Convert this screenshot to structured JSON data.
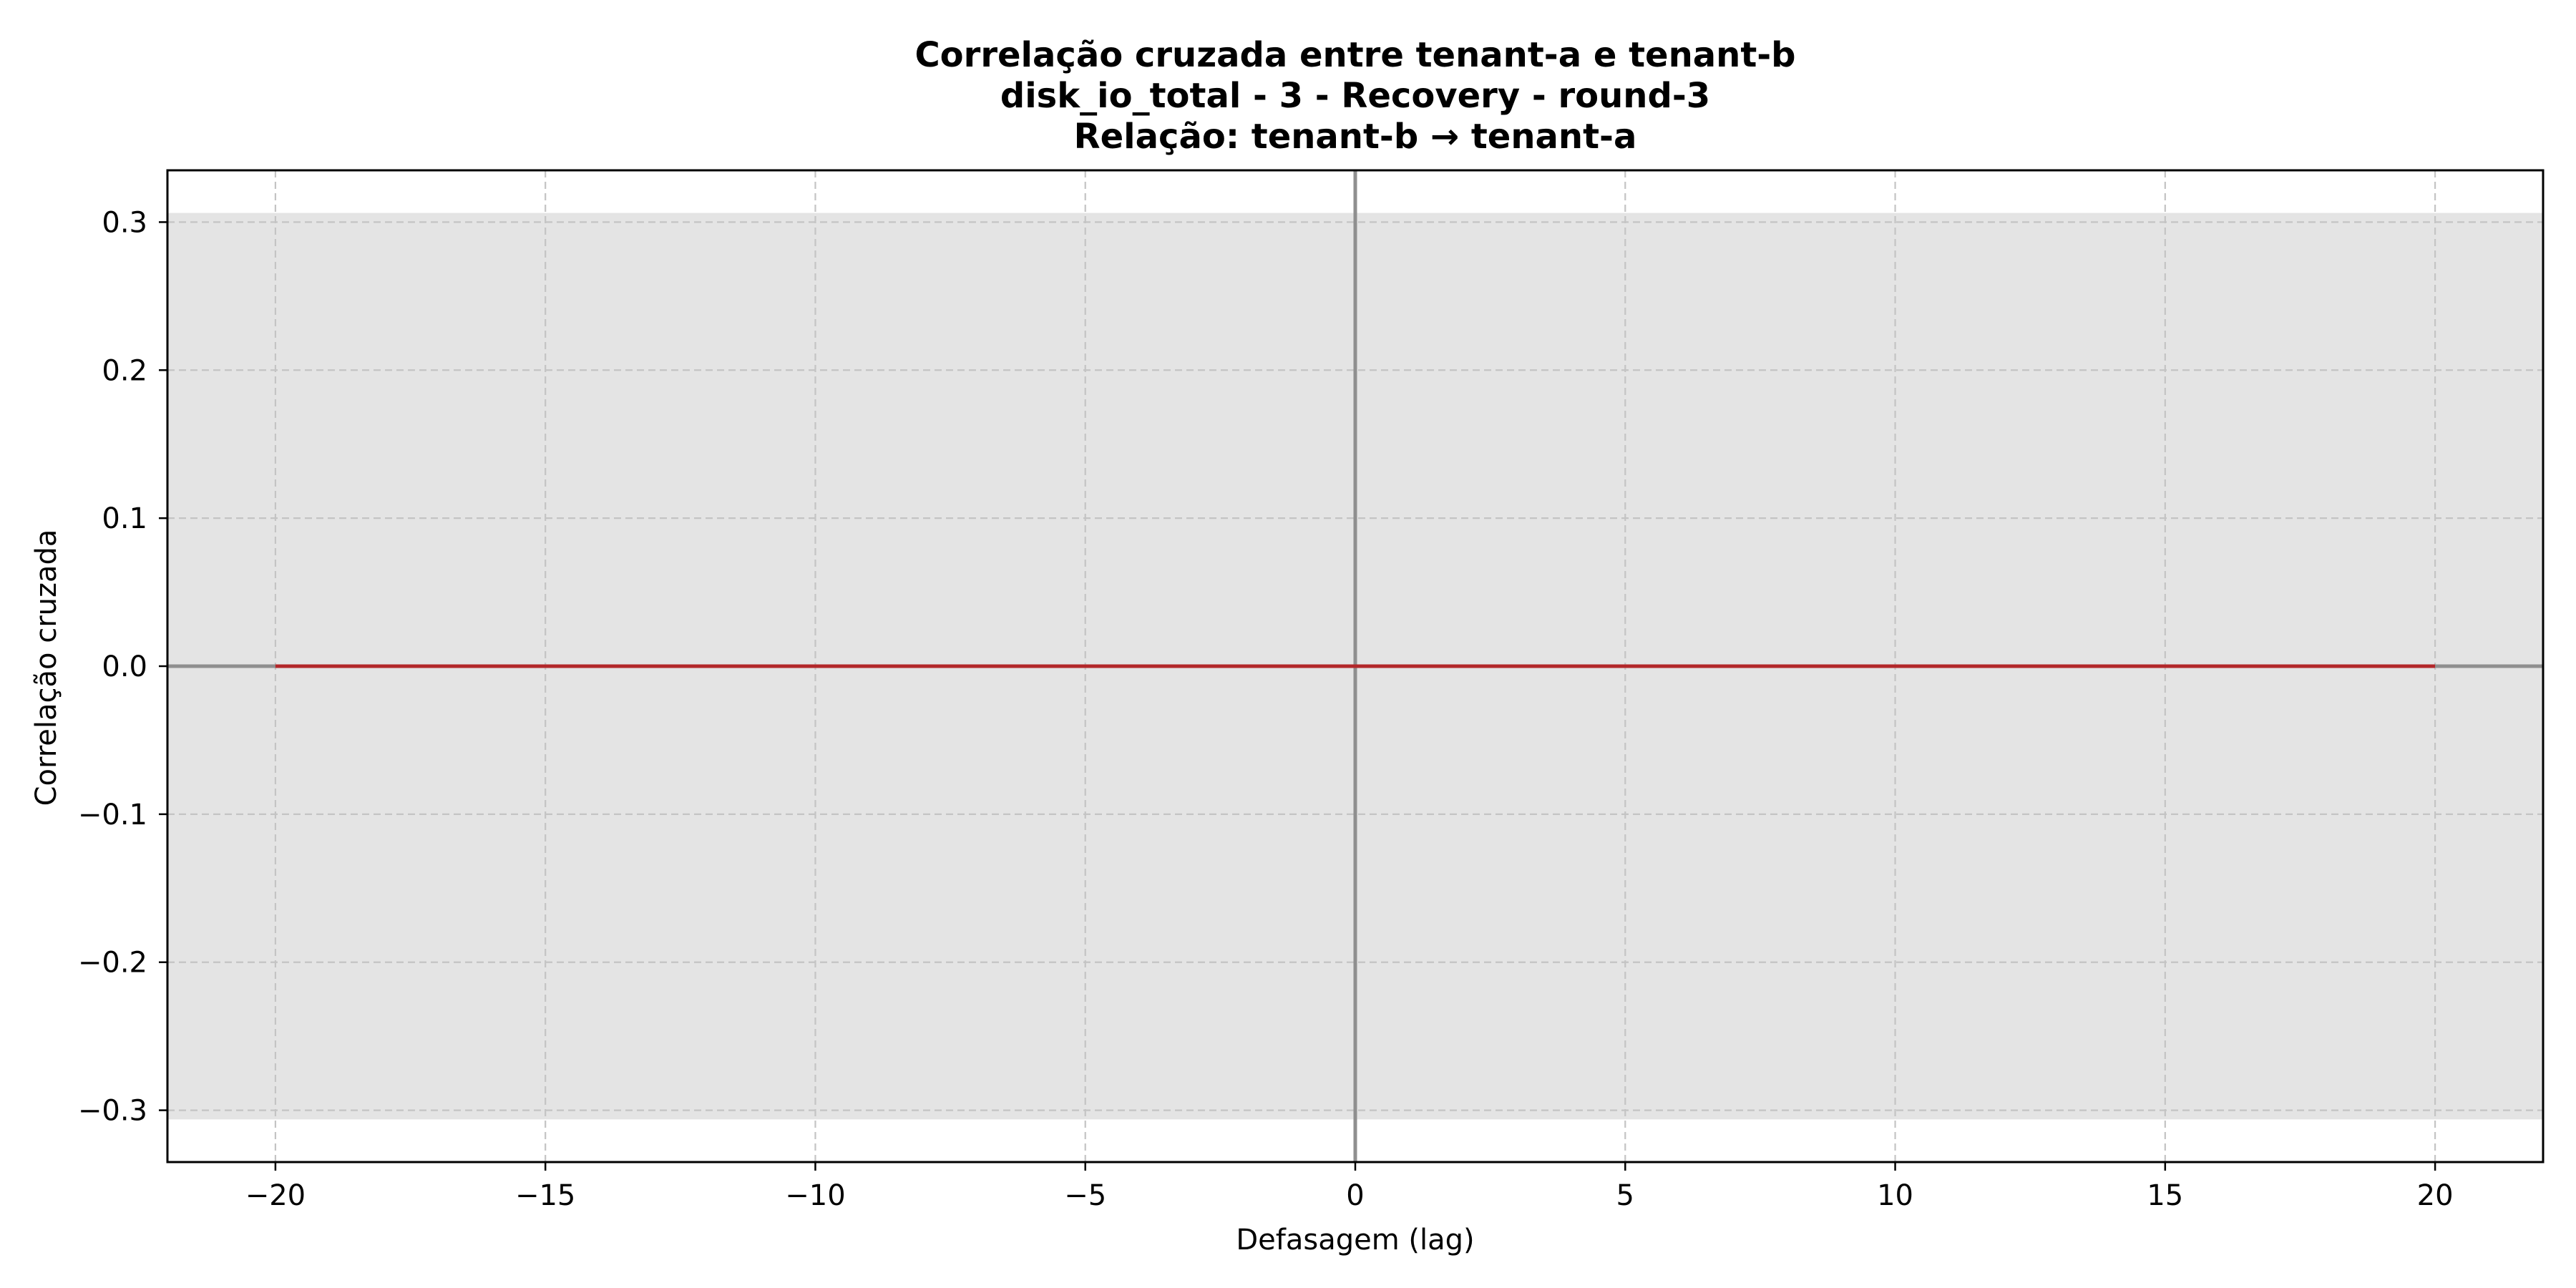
{
  "chart_data": {
    "type": "line",
    "title_lines": [
      "Correlação cruzada entre tenant-a e tenant-b",
      "disk_io_total - 3 - Recovery - round-3",
      "Relação: tenant-b → tenant-a"
    ],
    "xlabel": "Defasagem (lag)",
    "ylabel": "Correlação cruzada",
    "xlim": [
      -22,
      22
    ],
    "ylim": [
      -0.335,
      0.335
    ],
    "xticks": [
      -20,
      -15,
      -10,
      -5,
      0,
      5,
      10,
      15,
      20
    ],
    "xtick_labels": [
      "−20",
      "−15",
      "−10",
      "−5",
      "0",
      "5",
      "10",
      "15",
      "20"
    ],
    "yticks": [
      0.3,
      0.2,
      0.1,
      0.0,
      -0.1,
      -0.2,
      -0.3
    ],
    "ytick_labels": [
      "0.3",
      "0.2",
      "0.1",
      "0.0",
      "−0.1",
      "−0.2",
      "−0.3"
    ],
    "grid": true,
    "confidence_band": [
      -0.3062,
      0.3062
    ],
    "reference_lines": {
      "x": 0,
      "y": 0
    },
    "series": [
      {
        "x": [
          -20,
          -19,
          -18,
          -17,
          -16,
          -15,
          -14,
          -13,
          -12,
          -11,
          -10,
          -9,
          -8,
          -7,
          -6,
          -5,
          -4,
          -3,
          -2,
          -1,
          0,
          1,
          2,
          3,
          4,
          5,
          6,
          7,
          8,
          9,
          10,
          11,
          12,
          13,
          14,
          15,
          16,
          17,
          18,
          19,
          20
        ],
        "values": [
          0,
          0,
          0,
          0,
          0,
          0,
          0,
          0,
          0,
          0,
          0,
          0,
          0,
          0,
          0,
          0,
          0,
          0,
          0,
          0,
          0,
          0,
          0,
          0,
          0,
          0,
          0,
          0,
          0,
          0,
          0,
          0,
          0,
          0,
          0,
          0,
          0,
          0,
          0,
          0,
          0
        ],
        "color": "#b2272a"
      }
    ],
    "colors": {
      "band": "#e4e4e4",
      "grid": "#c4c4c4",
      "reference": "#8f8f8f",
      "axes": "#000000"
    }
  }
}
